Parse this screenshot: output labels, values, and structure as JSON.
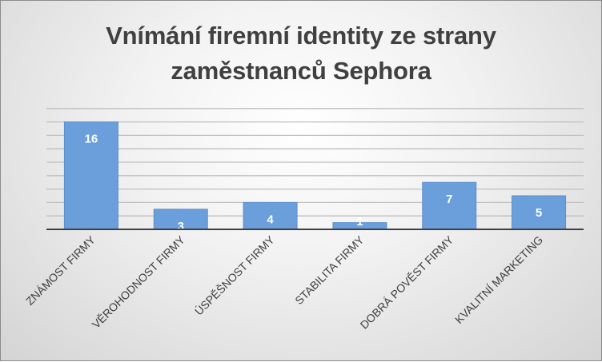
{
  "chart_data": {
    "type": "bar",
    "title_lines": [
      "Vnímání firemní identity ze strany",
      "zaměstnanců Sephora"
    ],
    "categories": [
      "ZNÁMOST FIRMY",
      "VĚROHODNOST FIRMY",
      "ÚSPĚŠNOST FIRMY",
      "STABILITA FIRMY",
      "DOBRÁ POVĚST FIRMY",
      "KVALITNÍ MARKETING"
    ],
    "values": [
      16,
      3,
      4,
      1,
      7,
      5
    ],
    "ylim": [
      0,
      18
    ],
    "grid": true,
    "legend": "none",
    "colors": {
      "bar": "#6a9fdc",
      "label": "#ffffff",
      "axis": "#404040"
    }
  }
}
